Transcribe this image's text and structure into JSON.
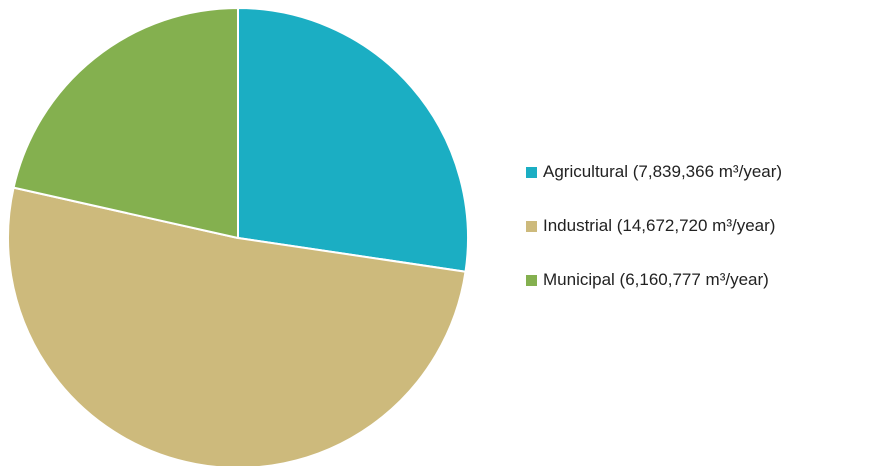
{
  "chart_data": {
    "type": "pie",
    "title": "",
    "slices": [
      {
        "label": "Agricultural (7,839,366 m³/year)",
        "value": 7839366,
        "color": "#1BAEC3"
      },
      {
        "label": "Industrial (14,672,720 m³/year)",
        "value": 14672720,
        "color": "#CDBA7C"
      },
      {
        "label": "Municipal (6,160,777 m³/year)",
        "value": 6160777,
        "color": "#84B04F"
      }
    ],
    "start_angle_deg": 0,
    "direction": "clockwise",
    "legend_position": "right"
  }
}
